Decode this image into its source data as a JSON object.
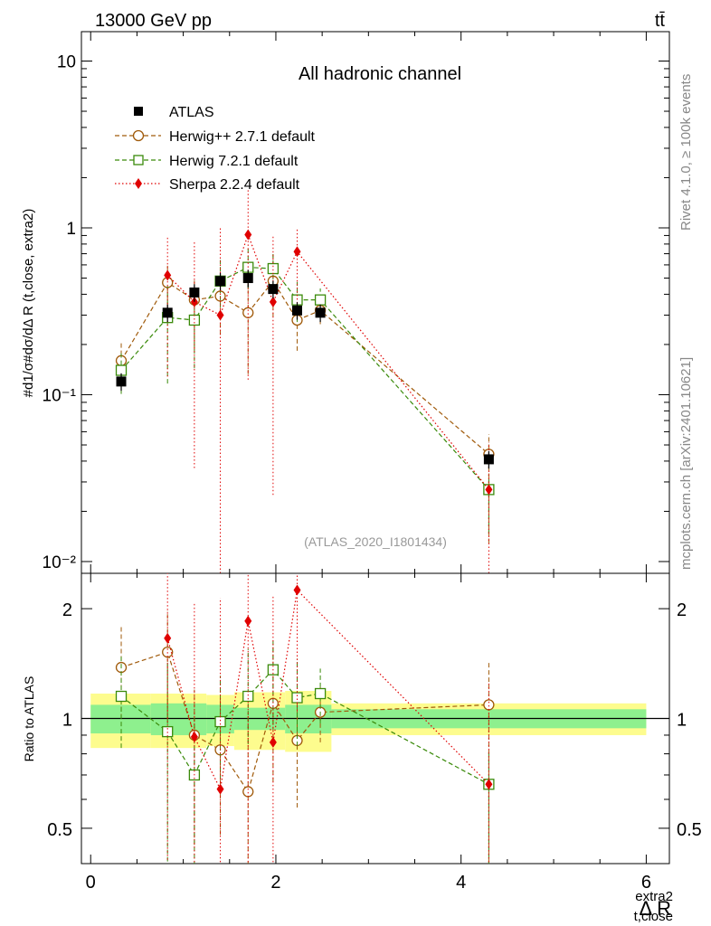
{
  "header": {
    "left": "13000 GeV pp",
    "right": "tt̄",
    "channel": "All hadronic channel",
    "watermark": "(ATLAS_2020_I1801434)",
    "side_top": "Rivet 4.1.0, ≥ 100k events",
    "side_bottom": "mcplots.cern.ch [arXiv:2401.10621]"
  },
  "axes": {
    "xlabel_main": "Δ R",
    "xlabel_sup": "extra2",
    "xlabel_sub": "t,close",
    "ylabel_main": "#d1/σ#dσ/dΔ R (t,close, extra2)",
    "ylabel_ratio": "Ratio to ATLAS",
    "x_ticks": [
      "0",
      "2",
      "4",
      "6"
    ],
    "y_ticks_main": [
      "10⁻²",
      "10⁻¹",
      "1",
      "10"
    ],
    "y_ticks_ratio": [
      "0.5",
      "1",
      "2"
    ]
  },
  "legend": [
    {
      "label": "ATLAS",
      "color": "#000000",
      "marker": "square-filled"
    },
    {
      "label": "Herwig++ 2.7.1 default",
      "color": "#a05a0a",
      "marker": "circle-open"
    },
    {
      "label": "Herwig 7.2.1 default",
      "color": "#3a8a0a",
      "marker": "square-open"
    },
    {
      "label": "Sherpa 2.2.4 default",
      "color": "#e00000",
      "marker": "diamond-filled"
    }
  ],
  "chart_data": {
    "type": "scatter",
    "title": "All hadronic channel",
    "xlim": [
      -0.1,
      6.25
    ],
    "ylim_main": [
      0.0085,
      15
    ],
    "ylim_ratio": [
      0.4,
      2.5
    ],
    "x": [
      0.33,
      0.83,
      1.12,
      1.4,
      1.7,
      1.97,
      2.23,
      2.48,
      4.3
    ],
    "data": {
      "name": "ATLAS",
      "values": [
        0.12,
        0.31,
        0.41,
        0.48,
        0.5,
        0.43,
        0.32,
        0.31,
        0.041
      ],
      "stat_band": [
        [
          0.0,
          0.65,
          0.09
        ],
        [
          0.65,
          1.25,
          0.1
        ],
        [
          1.25,
          1.55,
          0.09
        ],
        [
          1.55,
          2.1,
          0.07
        ],
        [
          2.1,
          2.6,
          0.09
        ],
        [
          2.6,
          6.0,
          0.06
        ]
      ],
      "total_band": [
        [
          0.0,
          0.65,
          0.17
        ],
        [
          0.65,
          1.25,
          0.17
        ],
        [
          1.25,
          1.55,
          0.16
        ],
        [
          1.55,
          2.1,
          0.18
        ],
        [
          2.1,
          2.6,
          0.19
        ],
        [
          2.6,
          6.0,
          0.1
        ]
      ]
    },
    "series": [
      {
        "name": "Herwig++ 2.7.1 default",
        "color": "#a05a0a",
        "values": [
          0.16,
          0.47,
          0.37,
          0.39,
          0.31,
          0.48,
          0.28,
          0.32,
          0.044
        ],
        "ratio": [
          1.38,
          1.52,
          0.9,
          0.82,
          0.63,
          1.1,
          0.87,
          1.04,
          1.09
        ],
        "ratio_err_lo": [
          0.38,
          0.53,
          0.45,
          0.34,
          0.36,
          0.43,
          0.3,
          0.18,
          0.77
        ],
        "ratio_err_hi": [
          0.4,
          0.45,
          0.3,
          0.32,
          0.4,
          0.5,
          0.31,
          0.19,
          0.35
        ]
      },
      {
        "name": "Herwig 7.2.1 default",
        "color": "#3a8a0a",
        "values": [
          0.14,
          0.29,
          0.28,
          0.48,
          0.58,
          0.57,
          0.37,
          0.37,
          0.027
        ],
        "ratio": [
          1.15,
          0.92,
          0.7,
          0.98,
          1.15,
          1.36,
          1.14,
          1.17,
          0.66
        ],
        "ratio_err_lo": [
          0.32,
          0.55,
          0.34,
          0.3,
          0.3,
          0.4,
          0.3,
          0.2,
          0.3
        ],
        "ratio_err_hi": [
          0.33,
          0.5,
          0.3,
          0.33,
          0.4,
          0.3,
          0.32,
          0.2,
          0.15
        ]
      },
      {
        "name": "Sherpa 2.2.4 default",
        "color": "#e00000",
        "values": [
          null,
          0.52,
          0.36,
          0.3,
          0.91,
          0.36,
          0.72,
          null,
          0.027
        ],
        "ratio": [
          null,
          1.66,
          0.89,
          0.64,
          1.85,
          0.86,
          2.25,
          null,
          0.66
        ],
        "ratio_err_lo": [
          null,
          1.25,
          0.8,
          0.8,
          1.6,
          0.8,
          1.2,
          null,
          0.6
        ],
        "ratio_err_hi": [
          null,
          1.2,
          1.2,
          1.5,
          1.6,
          1.3,
          0.9,
          null,
          0.6
        ]
      }
    ]
  }
}
